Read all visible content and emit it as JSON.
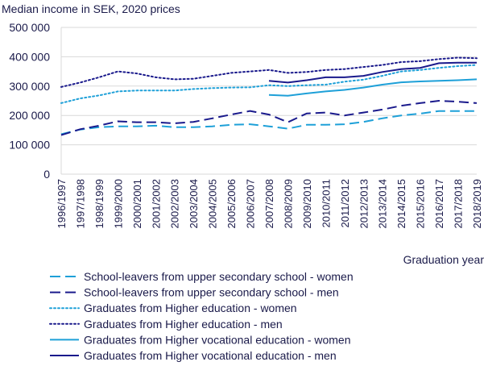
{
  "chart_data": {
    "type": "line",
    "title": "Median income in SEK, 2020 prices",
    "xlabel": "Graduation year",
    "ylabel": "",
    "ylim": [
      0,
      500000
    ],
    "yticks": [
      0,
      100000,
      200000,
      300000,
      400000,
      500000
    ],
    "ytick_labels": [
      "0",
      "100 000",
      "200 000",
      "300 000",
      "400 000",
      "500 000"
    ],
    "grid": "horizontal",
    "legend_position": "bottom",
    "categories": [
      "1996/1997",
      "1997/1998",
      "1998/1999",
      "1999/2000",
      "2000/2001",
      "2001/2002",
      "2002/2003",
      "2003/2004",
      "2004/2005",
      "2005/2006",
      "2006/2007",
      "2007/2008",
      "2008/2009",
      "2009/2010",
      "2010/2011",
      "2011/2012",
      "2012/2013",
      "2013/2014",
      "2014/2015",
      "2015/2016",
      "2016/2017",
      "2017/2018",
      "2018/2019"
    ],
    "series": [
      {
        "name": "School-leavers from upper secondary school - women",
        "color": "#1ea0d8",
        "dash": "long-dash",
        "values": [
          136000,
          152000,
          160000,
          163000,
          163000,
          165000,
          160000,
          160000,
          163000,
          168000,
          170000,
          163000,
          155000,
          168000,
          168000,
          170000,
          178000,
          190000,
          200000,
          206000,
          215000,
          215000,
          215000
        ]
      },
      {
        "name": "School-leavers from upper secondary school - men",
        "color": "#1a1a8c",
        "dash": "long-dash",
        "values": [
          133000,
          153000,
          165000,
          180000,
          177000,
          177000,
          173000,
          178000,
          190000,
          203000,
          215000,
          203000,
          177000,
          207000,
          210000,
          200000,
          210000,
          220000,
          233000,
          242000,
          250000,
          247000,
          242000
        ]
      },
      {
        "name": "Graduates from Higher education - women",
        "color": "#1ea0d8",
        "dash": "dotted",
        "values": [
          242000,
          258000,
          268000,
          282000,
          285000,
          285000,
          285000,
          290000,
          293000,
          295000,
          296000,
          303000,
          300000,
          303000,
          305000,
          315000,
          322000,
          335000,
          350000,
          355000,
          362000,
          368000,
          372000
        ]
      },
      {
        "name": "Graduates from Higher education - men",
        "color": "#1a1a8c",
        "dash": "dotted",
        "values": [
          297000,
          312000,
          330000,
          350000,
          343000,
          330000,
          323000,
          325000,
          335000,
          345000,
          350000,
          355000,
          345000,
          348000,
          355000,
          358000,
          365000,
          372000,
          382000,
          385000,
          392000,
          397000,
          395000
        ]
      },
      {
        "name": "Graduates from Higher vocational education - women",
        "color": "#1ea0d8",
        "dash": "solid",
        "values": [
          null,
          null,
          null,
          null,
          null,
          null,
          null,
          null,
          null,
          null,
          null,
          270000,
          267000,
          275000,
          282000,
          287000,
          295000,
          305000,
          313000,
          316000,
          318000,
          320000,
          323000
        ]
      },
      {
        "name": "Graduates from Higher vocational education - men",
        "color": "#1a1a8c",
        "dash": "solid",
        "values": [
          null,
          null,
          null,
          null,
          null,
          null,
          null,
          null,
          null,
          null,
          null,
          318000,
          312000,
          320000,
          330000,
          330000,
          335000,
          348000,
          358000,
          362000,
          378000,
          380000,
          380000
        ]
      }
    ]
  }
}
